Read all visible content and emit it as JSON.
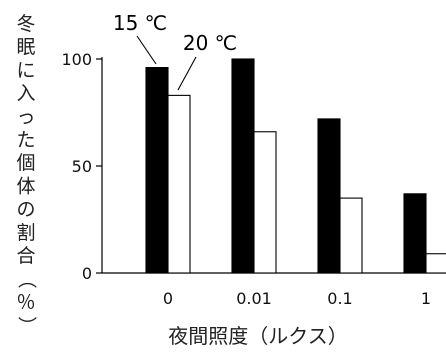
{
  "chart_data": {
    "type": "bar",
    "ylabel": "冬眠に入った個体の割合（％）",
    "xlabel": "夜間照度（ルクス）",
    "categories": [
      "0",
      "0.01",
      "0.1",
      "1"
    ],
    "ylim": [
      0,
      100
    ],
    "yticks": [
      0,
      50,
      100
    ],
    "grid": false,
    "legend": "annotation labels above first group",
    "series": [
      {
        "name": "15 ℃",
        "color": "#000000",
        "values": [
          96,
          100,
          72,
          37
        ]
      },
      {
        "name": "20 ℃",
        "color": "#ffffff",
        "values": [
          83,
          66,
          35,
          9
        ]
      }
    ]
  }
}
